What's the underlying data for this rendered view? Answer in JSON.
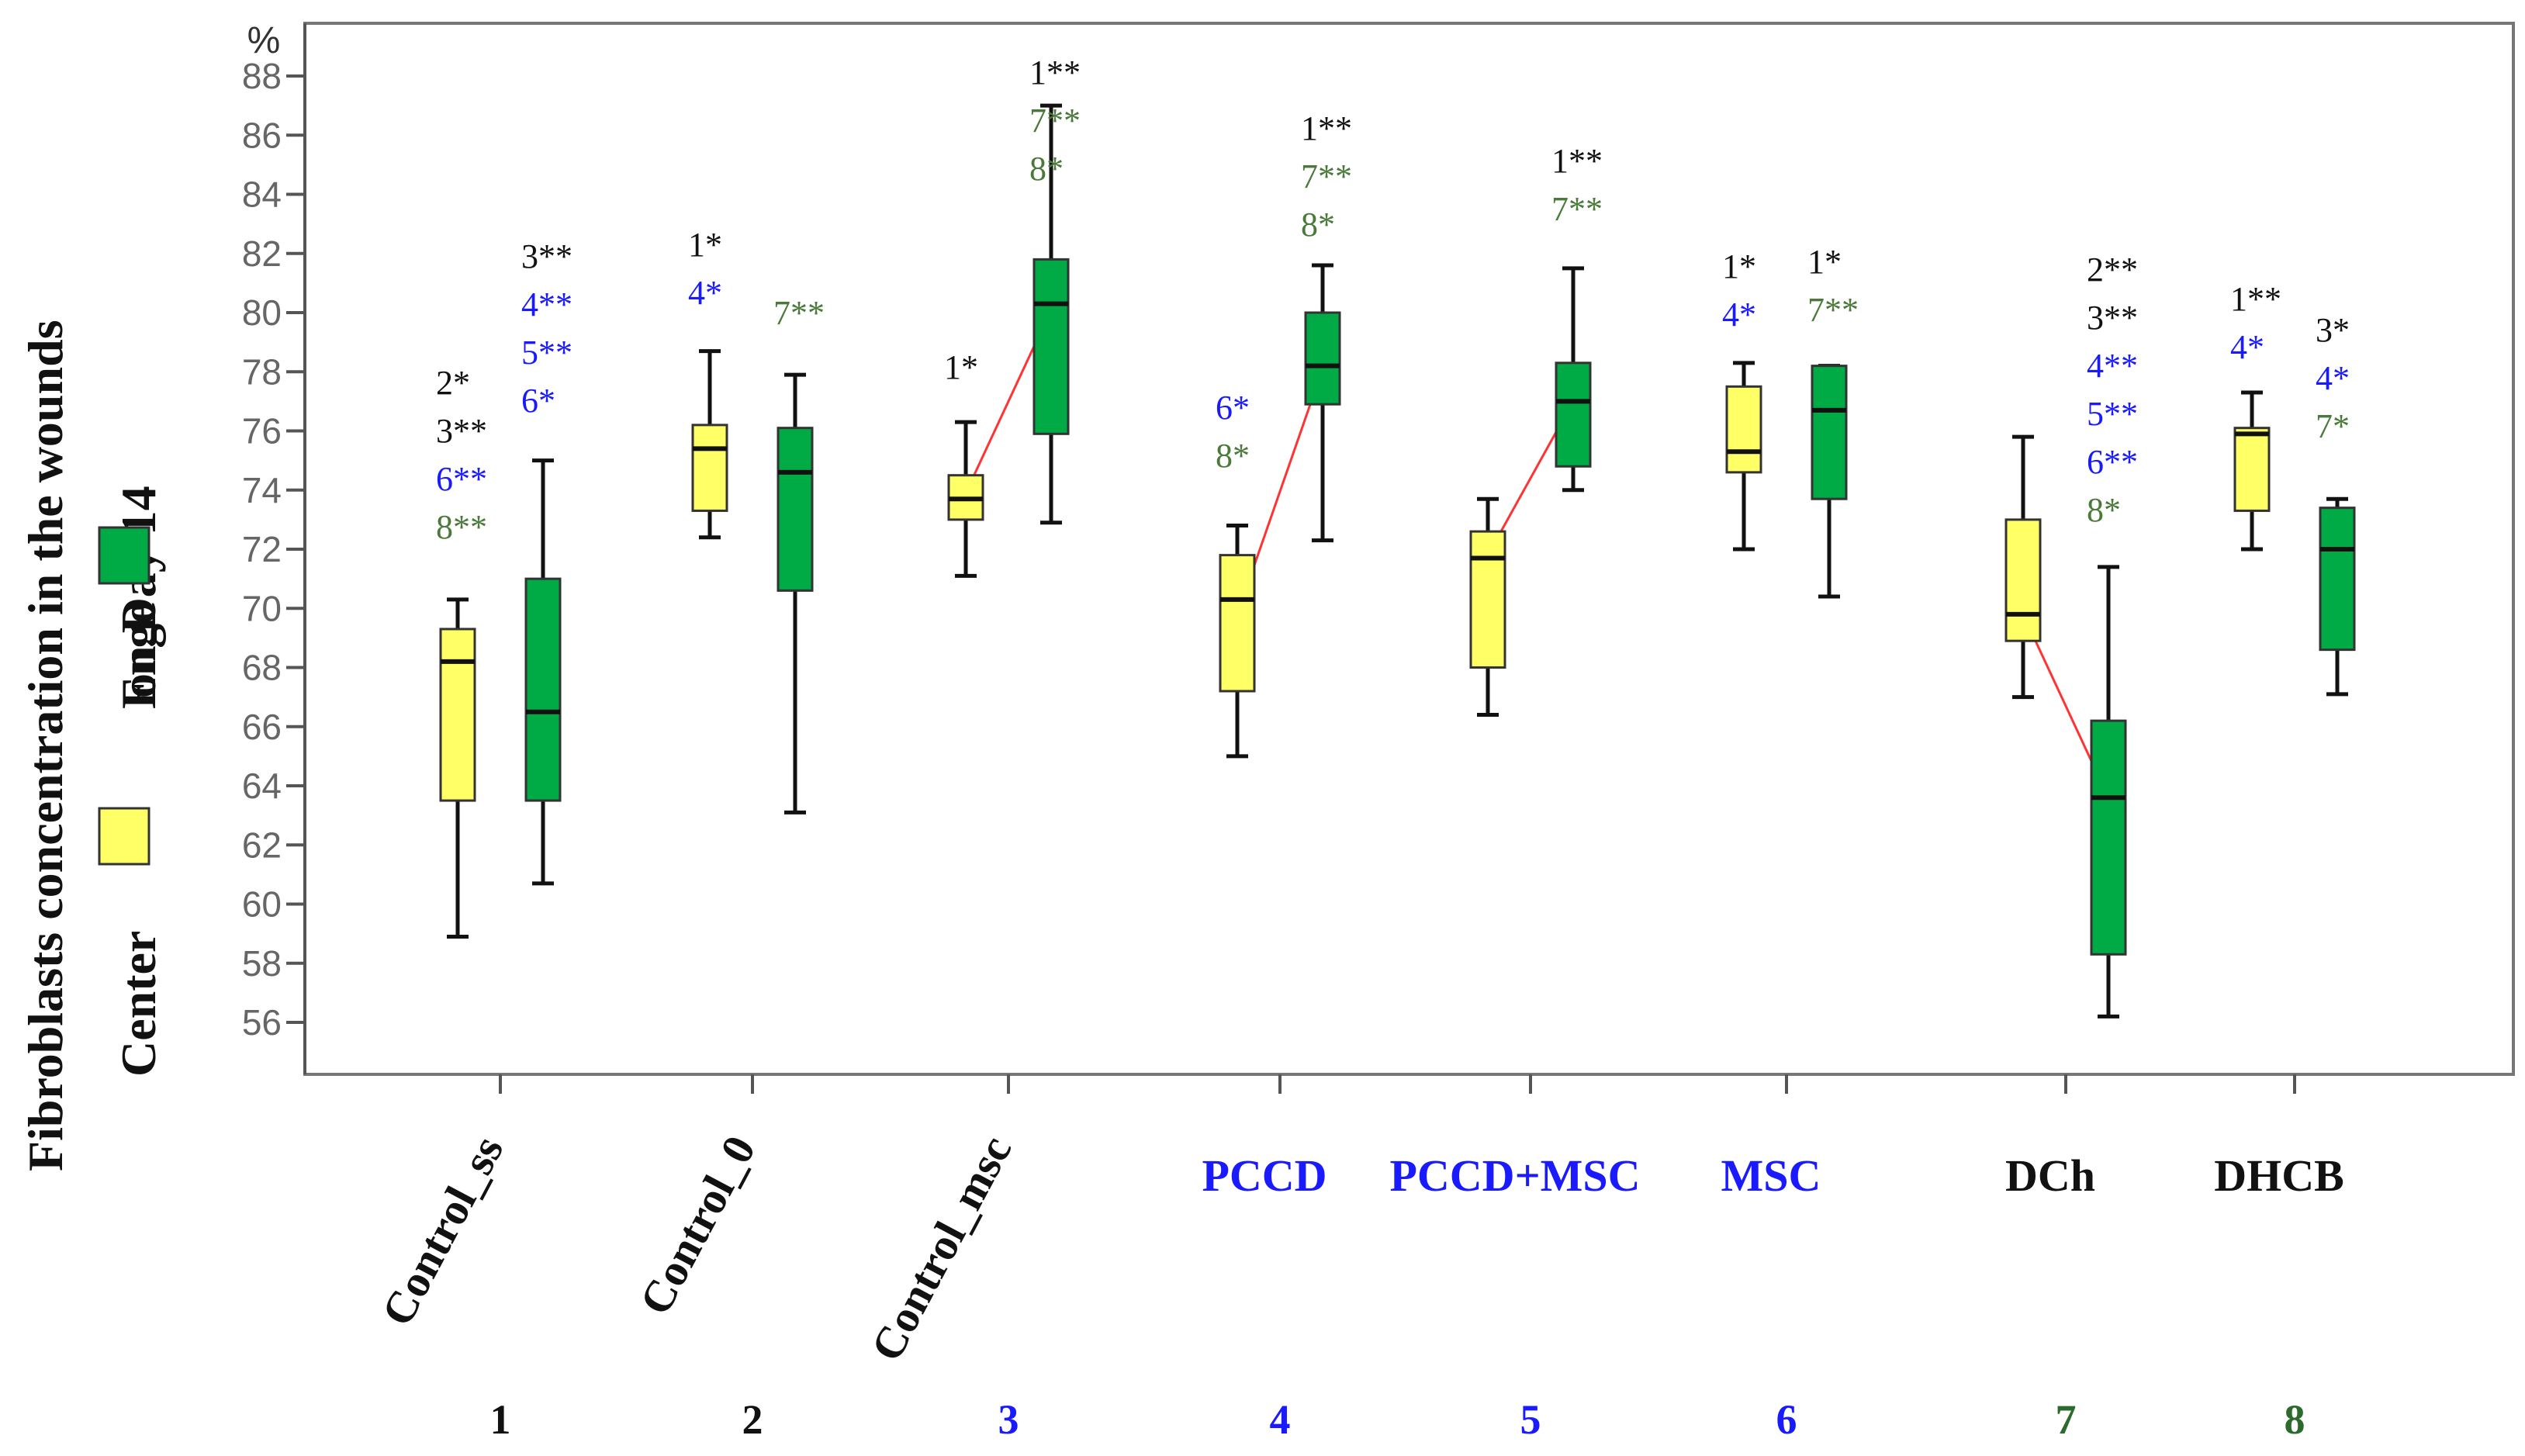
{
  "chart_data": {
    "type": "boxplot",
    "title": "",
    "ylabel": "Fibroblasts concentration in the wounds on Day 14",
    "ylabel_line1": "Fibroblasts concentration in the wounds",
    "ylabel_line2": "on Day 14",
    "unit": "%",
    "ylim": [
      55,
      89
    ],
    "yticks": [
      56,
      58,
      60,
      62,
      64,
      66,
      68,
      70,
      72,
      74,
      76,
      78,
      80,
      82,
      84,
      86,
      88
    ],
    "legend": [
      {
        "name": "Center",
        "color": "#ffff66"
      },
      {
        "name": "Enge",
        "color": "#00aa44"
      }
    ],
    "colors": {
      "center": "#ffff66",
      "edge": "#00aa44",
      "black": "#111111",
      "blue": "#1a1aff",
      "green": "#4a7a3a",
      "dark_green": "#2d6a2d",
      "mean_line": "#ff3333"
    },
    "groups": [
      {
        "label": "Control_ss",
        "number": "1",
        "label_color": "#111111",
        "number_color": "#111111",
        "rotated": true,
        "center": {
          "min": 58.9,
          "q1": 63.5,
          "median": 68.2,
          "q3": 69.3,
          "max": 70.3
        },
        "edge": {
          "min": 60.7,
          "q1": 63.5,
          "median": 66.5,
          "q3": 71.0,
          "max": 75.0
        },
        "center_ann": [
          {
            "text": "2*",
            "color": "#111111"
          },
          {
            "text": "3**",
            "color": "#111111"
          },
          {
            "text": "6**",
            "color": "#1a1aff"
          },
          {
            "text": "8**",
            "color": "#4a7a3a"
          }
        ],
        "edge_ann": [
          {
            "text": "3**",
            "color": "#111111"
          },
          {
            "text": "4**",
            "color": "#1a1aff"
          },
          {
            "text": "5**",
            "color": "#1a1aff"
          },
          {
            "text": "6*",
            "color": "#1a1aff"
          }
        ],
        "mean_line": null
      },
      {
        "label": "Control_0",
        "number": "2",
        "label_color": "#111111",
        "number_color": "#111111",
        "rotated": true,
        "center": {
          "min": 72.4,
          "q1": 73.3,
          "median": 75.4,
          "q3": 76.2,
          "max": 78.7
        },
        "edge": {
          "min": 63.1,
          "q1": 70.6,
          "median": 74.6,
          "q3": 76.1,
          "max": 77.9
        },
        "center_ann": [
          {
            "text": "1*",
            "color": "#111111"
          },
          {
            "text": "4*",
            "color": "#1a1aff"
          }
        ],
        "edge_ann": [
          {
            "text": "7**",
            "color": "#4a7a3a"
          }
        ],
        "mean_line": null
      },
      {
        "label": "Control_msc",
        "number": "3",
        "label_color": "#111111",
        "number_color": "#1a1aff",
        "rotated": true,
        "center": {
          "min": 71.1,
          "q1": 73.0,
          "median": 73.7,
          "q3": 74.5,
          "max": 76.3
        },
        "edge": {
          "min": 72.9,
          "q1": 75.9,
          "median": 80.3,
          "q3": 81.8,
          "max": 87.0
        },
        "center_ann": [
          {
            "text": "1*",
            "color": "#111111"
          }
        ],
        "edge_ann": [
          {
            "text": "1**",
            "color": "#111111"
          },
          {
            "text": "7**",
            "color": "#4a7a3a"
          },
          {
            "text": "8*",
            "color": "#4a7a3a"
          }
        ],
        "mean_line": [
          73.9,
          80.1
        ]
      },
      {
        "label": "PCCD",
        "number": "4",
        "label_color": "#1a1aff",
        "number_color": "#1a1aff",
        "rotated": false,
        "center": {
          "min": 65.0,
          "q1": 67.2,
          "median": 70.3,
          "q3": 71.8,
          "max": 72.8
        },
        "edge": {
          "min": 72.3,
          "q1": 76.9,
          "median": 78.2,
          "q3": 80.0,
          "max": 81.6
        },
        "center_ann": [
          {
            "text": "6*",
            "color": "#1a1aff"
          },
          {
            "text": "8*",
            "color": "#4a7a3a"
          }
        ],
        "edge_ann": [
          {
            "text": "1**",
            "color": "#111111"
          },
          {
            "text": "7**",
            "color": "#4a7a3a"
          },
          {
            "text": "8*",
            "color": "#4a7a3a"
          }
        ],
        "mean_line": [
          69.8,
          78.1
        ]
      },
      {
        "label": "PCCD+MSC",
        "number": "5",
        "label_color": "#1a1aff",
        "number_color": "#1a1aff",
        "rotated": false,
        "center": {
          "min": 66.4,
          "q1": 68.0,
          "median": 71.7,
          "q3": 72.6,
          "max": 73.7
        },
        "edge": {
          "min": 74.0,
          "q1": 74.8,
          "median": 77.0,
          "q3": 78.3,
          "max": 81.5
        },
        "center_ann": [],
        "edge_ann": [
          {
            "text": "1**",
            "color": "#111111"
          },
          {
            "text": "7**",
            "color": "#4a7a3a"
          }
        ],
        "mean_line": [
          71.8,
          77.0
        ]
      },
      {
        "label": "MSC",
        "number": "6",
        "label_color": "#1a1aff",
        "number_color": "#1a1aff",
        "rotated": false,
        "center": {
          "min": 72.0,
          "q1": 74.6,
          "median": 75.3,
          "q3": 77.5,
          "max": 78.3
        },
        "edge": {
          "min": 70.4,
          "q1": 73.7,
          "median": 76.7,
          "q3": 78.2,
          "max": 78.2
        },
        "center_ann": [
          {
            "text": "1*",
            "color": "#111111"
          },
          {
            "text": "4*",
            "color": "#1a1aff"
          }
        ],
        "edge_ann": [
          {
            "text": "1*",
            "color": "#111111"
          },
          {
            "text": "7**",
            "color": "#4a7a3a"
          }
        ],
        "mean_line": null
      },
      {
        "label": "DCh",
        "number": "7",
        "label_color": "#111111",
        "number_color": "#2d6a2d",
        "rotated": false,
        "center": {
          "min": 67.0,
          "q1": 68.9,
          "median": 69.8,
          "q3": 73.0,
          "max": 75.8
        },
        "edge": {
          "min": 56.2,
          "q1": 58.3,
          "median": 63.6,
          "q3": 66.2,
          "max": 71.4
        },
        "center_ann": [],
        "edge_ann": [
          {
            "text": "2**",
            "color": "#111111"
          },
          {
            "text": "3**",
            "color": "#111111"
          },
          {
            "text": "4**",
            "color": "#1a1aff"
          },
          {
            "text": "5**",
            "color": "#1a1aff"
          },
          {
            "text": "6**",
            "color": "#1a1aff"
          },
          {
            "text": "8*",
            "color": "#4a7a3a"
          }
        ],
        "mean_line": [
          69.8,
          63.6
        ]
      },
      {
        "label": "DHCB",
        "number": "8",
        "label_color": "#111111",
        "number_color": "#2d6a2d",
        "rotated": false,
        "center": {
          "min": 72.0,
          "q1": 73.3,
          "median": 75.9,
          "q3": 76.1,
          "max": 77.3
        },
        "edge": {
          "min": 67.1,
          "q1": 68.6,
          "median": 72.0,
          "q3": 73.4,
          "max": 73.7
        },
        "center_ann": [
          {
            "text": "1**",
            "color": "#111111"
          },
          {
            "text": "4*",
            "color": "#1a1aff"
          }
        ],
        "edge_ann": [
          {
            "text": "3*",
            "color": "#111111"
          },
          {
            "text": "4*",
            "color": "#1a1aff"
          },
          {
            "text": "7*",
            "color": "#4a7a3a"
          }
        ],
        "mean_line": null
      }
    ]
  }
}
